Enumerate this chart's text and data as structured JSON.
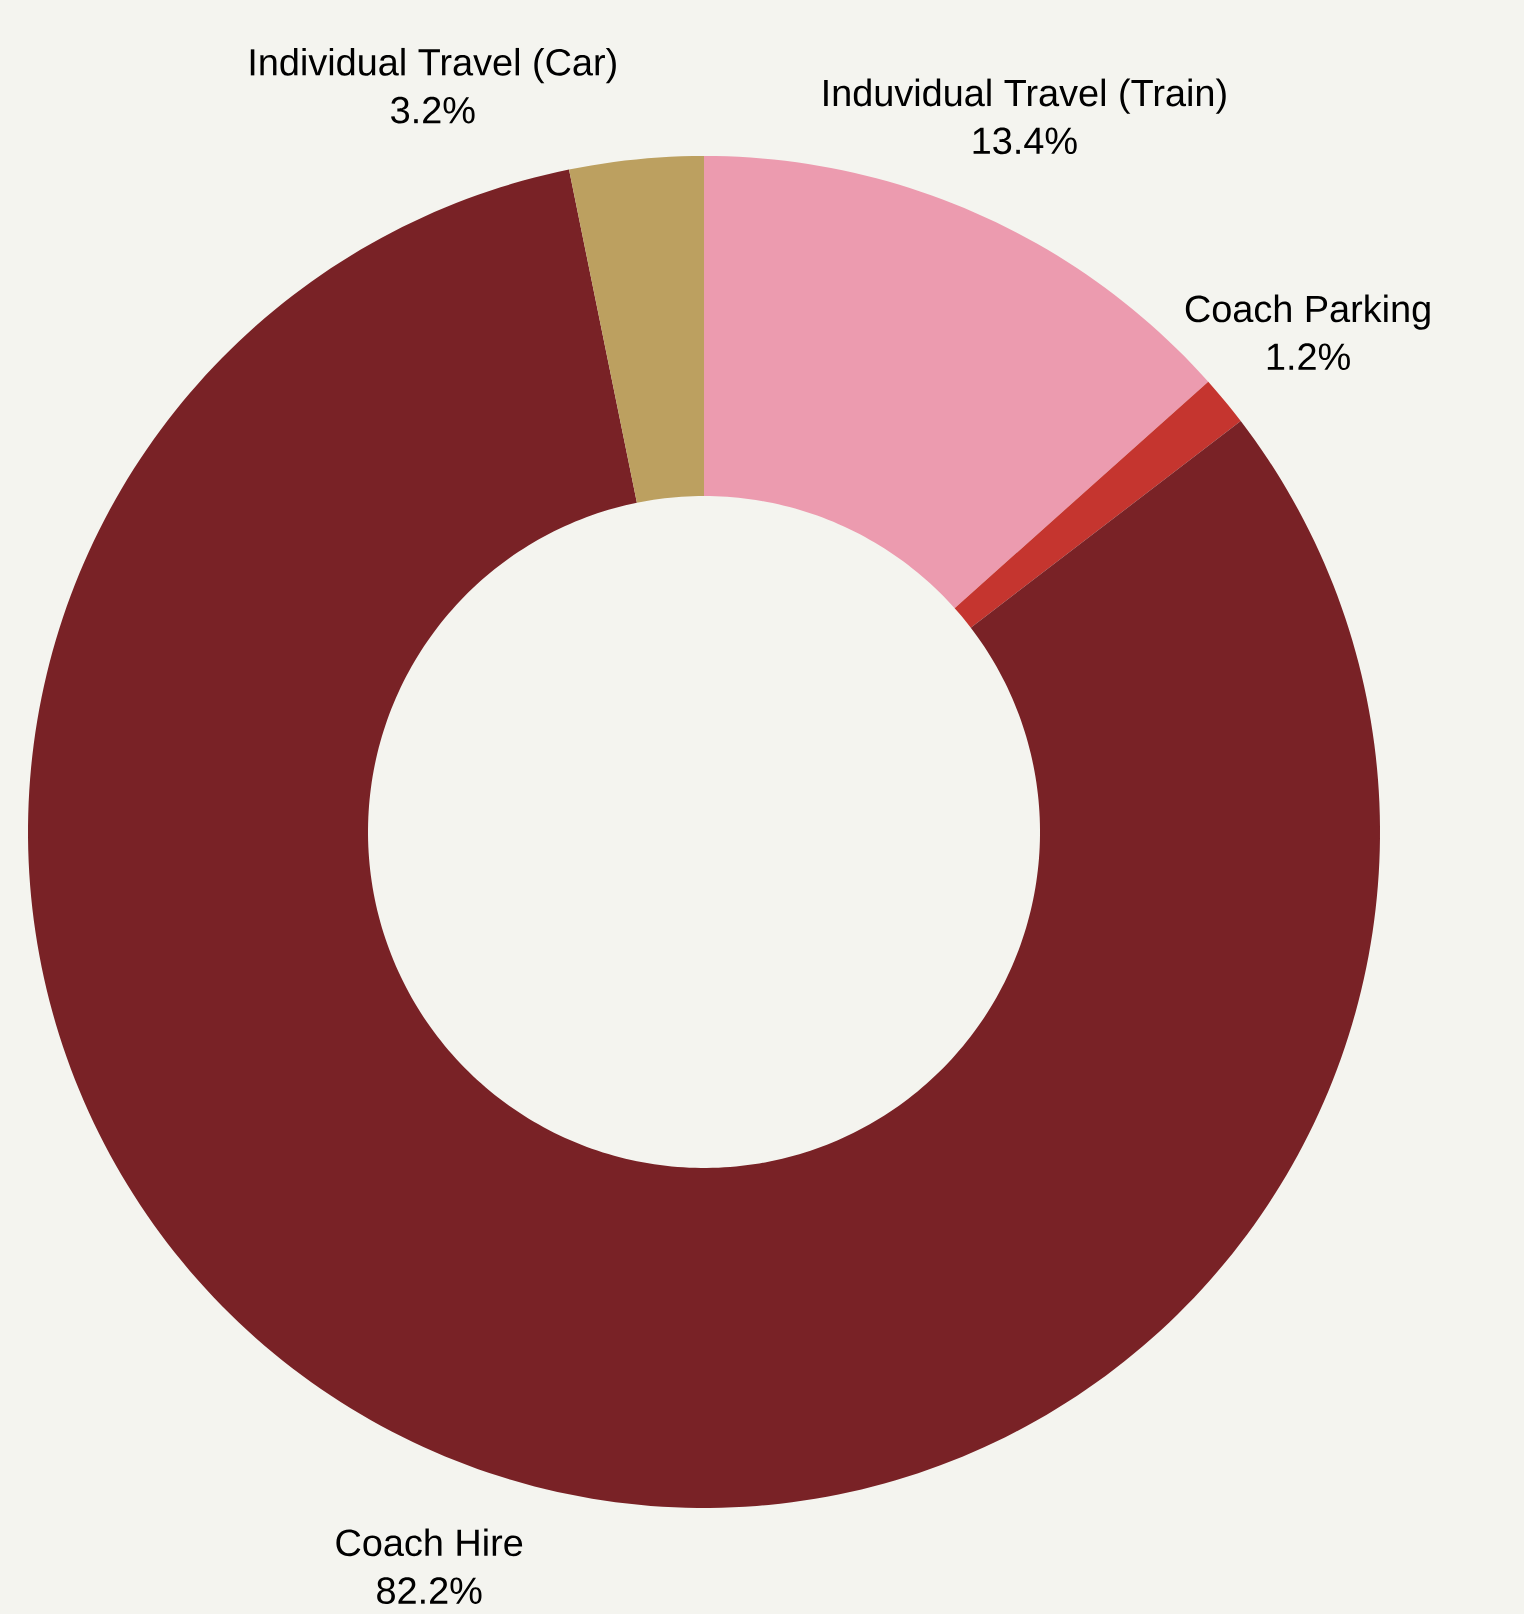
{
  "chart_data": {
    "type": "donut",
    "categories": [
      "Induvidual Travel (Train)",
      "Coach Parking",
      "Coach Hire",
      "Individual Travel (Car)"
    ],
    "values": [
      13.4,
      1.2,
      82.2,
      3.2
    ],
    "value_labels": [
      "13.4%",
      "1.2%",
      "82.2%",
      "3.2%"
    ],
    "colors": [
      "#ec9baf",
      "#c5352f",
      "#792226",
      "#bca060"
    ]
  }
}
